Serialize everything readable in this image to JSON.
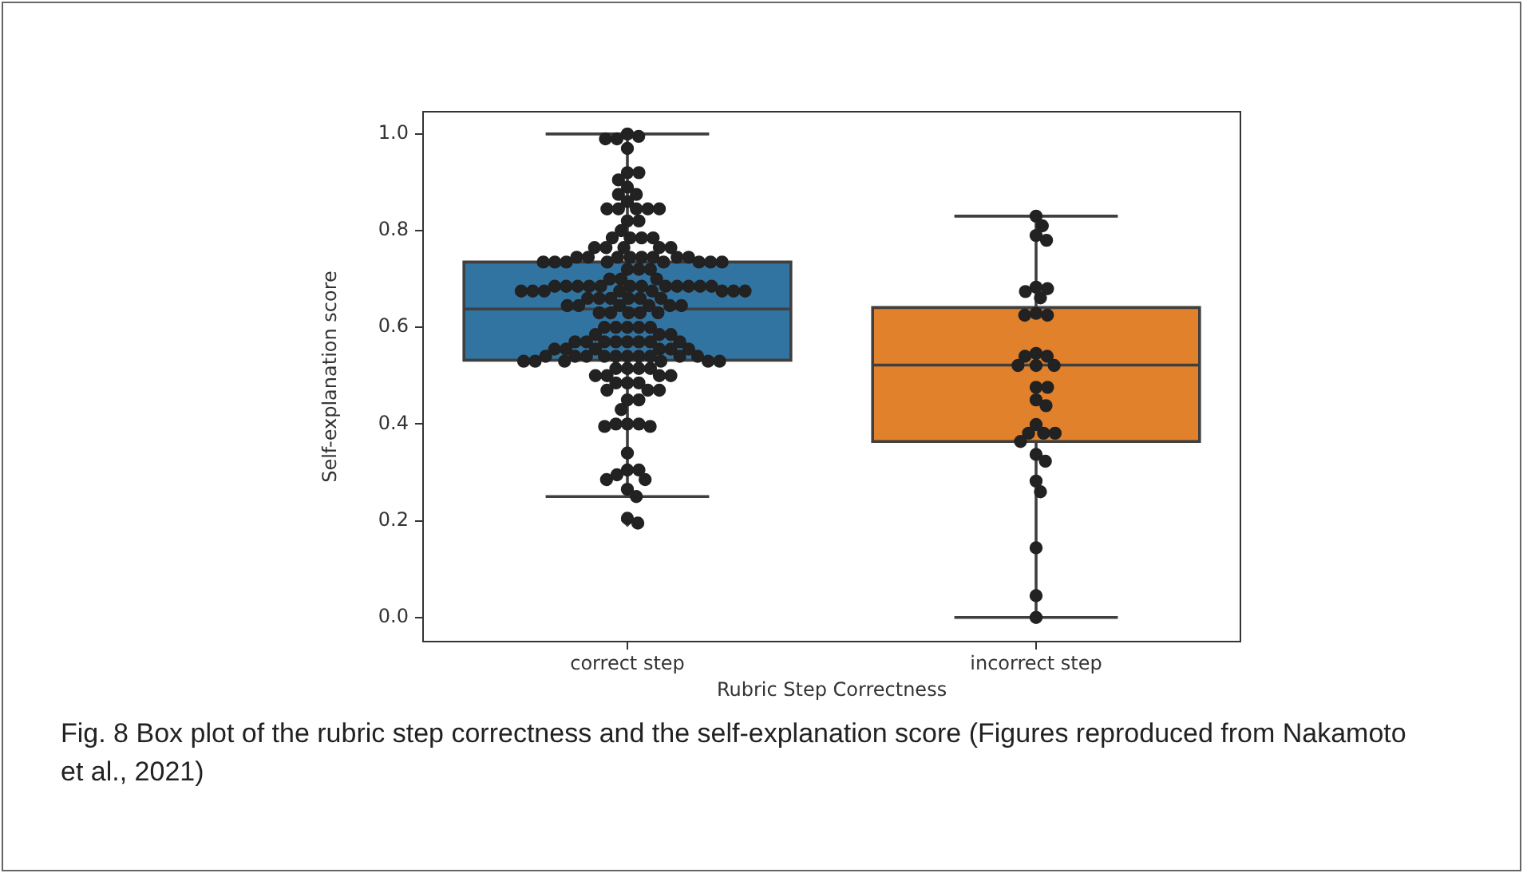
{
  "chart_data": {
    "type": "box",
    "xlabel": "Rubric Step Correctness",
    "ylabel": "Self-explanation score",
    "annotations": [
      "Fig. 8 Box plot of the rubric step correctness and the self-explanation score (Figures reproduced from Nakamoto et al., 2021)"
    ],
    "categories": [
      "correct step",
      "incorrect step"
    ],
    "colors": [
      "#3274a1",
      "#e1812c"
    ],
    "boxes": [
      {
        "low": 0.25,
        "q1": 0.532,
        "median": 0.638,
        "q3": 0.735,
        "high": 1.0,
        "outliers": [
          0.2
        ]
      },
      {
        "low": 0.0,
        "q1": 0.364,
        "median": 0.522,
        "q3": 0.641,
        "high": 0.83
      }
    ],
    "ylim": [
      -0.05,
      1.046
    ],
    "yticks": [
      {
        "value": 0,
        "label": "0.0"
      },
      {
        "value": 0.2,
        "label": "0.2"
      },
      {
        "value": 0.4,
        "label": "0.4"
      },
      {
        "value": 0.6,
        "label": "0.6"
      },
      {
        "value": 0.8,
        "label": "0.8"
      },
      {
        "value": 1,
        "label": "1.0"
      }
    ],
    "grid": false,
    "legend": false,
    "marker": "circle",
    "series": [
      {
        "type": "scatter",
        "color": "#222222",
        "x": [
          "correct step",
          "correct step",
          "correct step",
          "correct step",
          "correct step",
          "correct step",
          "correct step",
          "correct step",
          "correct step",
          "correct step",
          "correct step",
          "correct step",
          "correct step",
          "correct step",
          "correct step",
          "correct step",
          "correct step",
          "correct step",
          "correct step",
          "correct step",
          "correct step",
          "correct step",
          "correct step",
          "correct step",
          "correct step",
          "correct step",
          "correct step",
          "correct step",
          "correct step",
          "correct step",
          "correct step",
          "correct step",
          "correct step",
          "correct step",
          "correct step",
          "correct step",
          "correct step",
          "correct step",
          "correct step",
          "correct step",
          "correct step",
          "correct step",
          "correct step",
          "correct step",
          "correct step",
          "correct step",
          "correct step",
          "correct step",
          "correct step",
          "correct step",
          "correct step",
          "correct step",
          "correct step",
          "correct step",
          "correct step",
          "correct step",
          "correct step",
          "correct step",
          "correct step",
          "correct step",
          "correct step",
          "correct step",
          "correct step",
          "correct step",
          "correct step",
          "correct step",
          "correct step",
          "correct step",
          "correct step",
          "correct step",
          "correct step",
          "correct step",
          "correct step",
          "correct step",
          "correct step",
          "correct step",
          "correct step",
          "correct step",
          "correct step",
          "correct step",
          "correct step",
          "correct step",
          "correct step",
          "correct step",
          "correct step",
          "correct step",
          "correct step",
          "correct step",
          "correct step",
          "correct step",
          "correct step",
          "correct step",
          "correct step",
          "correct step",
          "correct step",
          "correct step",
          "correct step",
          "correct step",
          "correct step",
          "correct step",
          "correct step",
          "correct step",
          "correct step",
          "correct step",
          "correct step",
          "correct step",
          "correct step",
          "correct step",
          "correct step",
          "correct step",
          "correct step",
          "correct step",
          "correct step",
          "correct step",
          "correct step",
          "correct step",
          "correct step",
          "correct step",
          "correct step",
          "correct step",
          "correct step",
          "correct step",
          "correct step",
          "correct step",
          "correct step",
          "correct step",
          "correct step",
          "correct step",
          "correct step",
          "correct step",
          "correct step",
          "correct step",
          "correct step",
          "correct step",
          "correct step",
          "correct step",
          "correct step",
          "correct step",
          "correct step",
          "correct step",
          "correct step",
          "correct step",
          "correct step",
          "correct step",
          "correct step",
          "correct step",
          "correct step",
          "correct step",
          "correct step",
          "correct step",
          "correct step",
          "correct step",
          "correct step",
          "correct step",
          "correct step",
          "correct step",
          "correct step",
          "correct step"
        ],
        "values": [
          1.0,
          0.995,
          0.99,
          0.99,
          0.97,
          0.92,
          0.92,
          0.905,
          0.89,
          0.875,
          0.875,
          0.86,
          0.845,
          0.845,
          0.845,
          0.845,
          0.845,
          0.82,
          0.82,
          0.8,
          0.785,
          0.785,
          0.785,
          0.785,
          0.765,
          0.765,
          0.765,
          0.765,
          0.765,
          0.745,
          0.745,
          0.745,
          0.745,
          0.745,
          0.745,
          0.745,
          0.745,
          0.735,
          0.735,
          0.735,
          0.735,
          0.735,
          0.735,
          0.735,
          0.735,
          0.72,
          0.72,
          0.72,
          0.7,
          0.7,
          0.7,
          0.685,
          0.685,
          0.685,
          0.685,
          0.685,
          0.685,
          0.685,
          0.685,
          0.685,
          0.685,
          0.685,
          0.685,
          0.675,
          0.675,
          0.675,
          0.675,
          0.675,
          0.675,
          0.675,
          0.675,
          0.66,
          0.66,
          0.66,
          0.66,
          0.66,
          0.66,
          0.645,
          0.645,
          0.645,
          0.645,
          0.645,
          0.645,
          0.63,
          0.63,
          0.63,
          0.63,
          0.63,
          0.6,
          0.6,
          0.6,
          0.6,
          0.6,
          0.585,
          0.585,
          0.585,
          0.57,
          0.57,
          0.57,
          0.57,
          0.57,
          0.57,
          0.57,
          0.57,
          0.555,
          0.555,
          0.555,
          0.555,
          0.555,
          0.555,
          0.54,
          0.54,
          0.54,
          0.54,
          0.54,
          0.54,
          0.54,
          0.54,
          0.54,
          0.54,
          0.53,
          0.53,
          0.53,
          0.53,
          0.53,
          0.53,
          0.515,
          0.515,
          0.515,
          0.515,
          0.5,
          0.5,
          0.5,
          0.5,
          0.485,
          0.485,
          0.485,
          0.47,
          0.47,
          0.47,
          0.45,
          0.45,
          0.43,
          0.4,
          0.4,
          0.4,
          0.395,
          0.395,
          0.34,
          0.305,
          0.305,
          0.295,
          0.285,
          0.285,
          0.265,
          0.25,
          0.205,
          0.195
        ]
      },
      {
        "type": "scatter",
        "color": "#222222",
        "x": [
          "incorrect step",
          "incorrect step",
          "incorrect step",
          "incorrect step",
          "incorrect step",
          "incorrect step",
          "incorrect step",
          "incorrect step",
          "incorrect step",
          "incorrect step",
          "incorrect step",
          "incorrect step",
          "incorrect step",
          "incorrect step",
          "incorrect step",
          "incorrect step",
          "incorrect step",
          "incorrect step",
          "incorrect step",
          "incorrect step",
          "incorrect step",
          "incorrect step",
          "incorrect step",
          "incorrect step",
          "incorrect step",
          "incorrect step",
          "incorrect step",
          "incorrect step",
          "incorrect step",
          "incorrect step",
          "incorrect step",
          "incorrect step",
          "incorrect step"
        ],
        "values": [
          0.83,
          0.81,
          0.79,
          0.78,
          0.683,
          0.68,
          0.674,
          0.661,
          0.629,
          0.625,
          0.625,
          0.546,
          0.54,
          0.54,
          0.521,
          0.521,
          0.521,
          0.476,
          0.476,
          0.45,
          0.438,
          0.399,
          0.381,
          0.381,
          0.381,
          0.364,
          0.337,
          0.323,
          0.282,
          0.26,
          0.144,
          0.045,
          0.0
        ]
      }
    ]
  }
}
